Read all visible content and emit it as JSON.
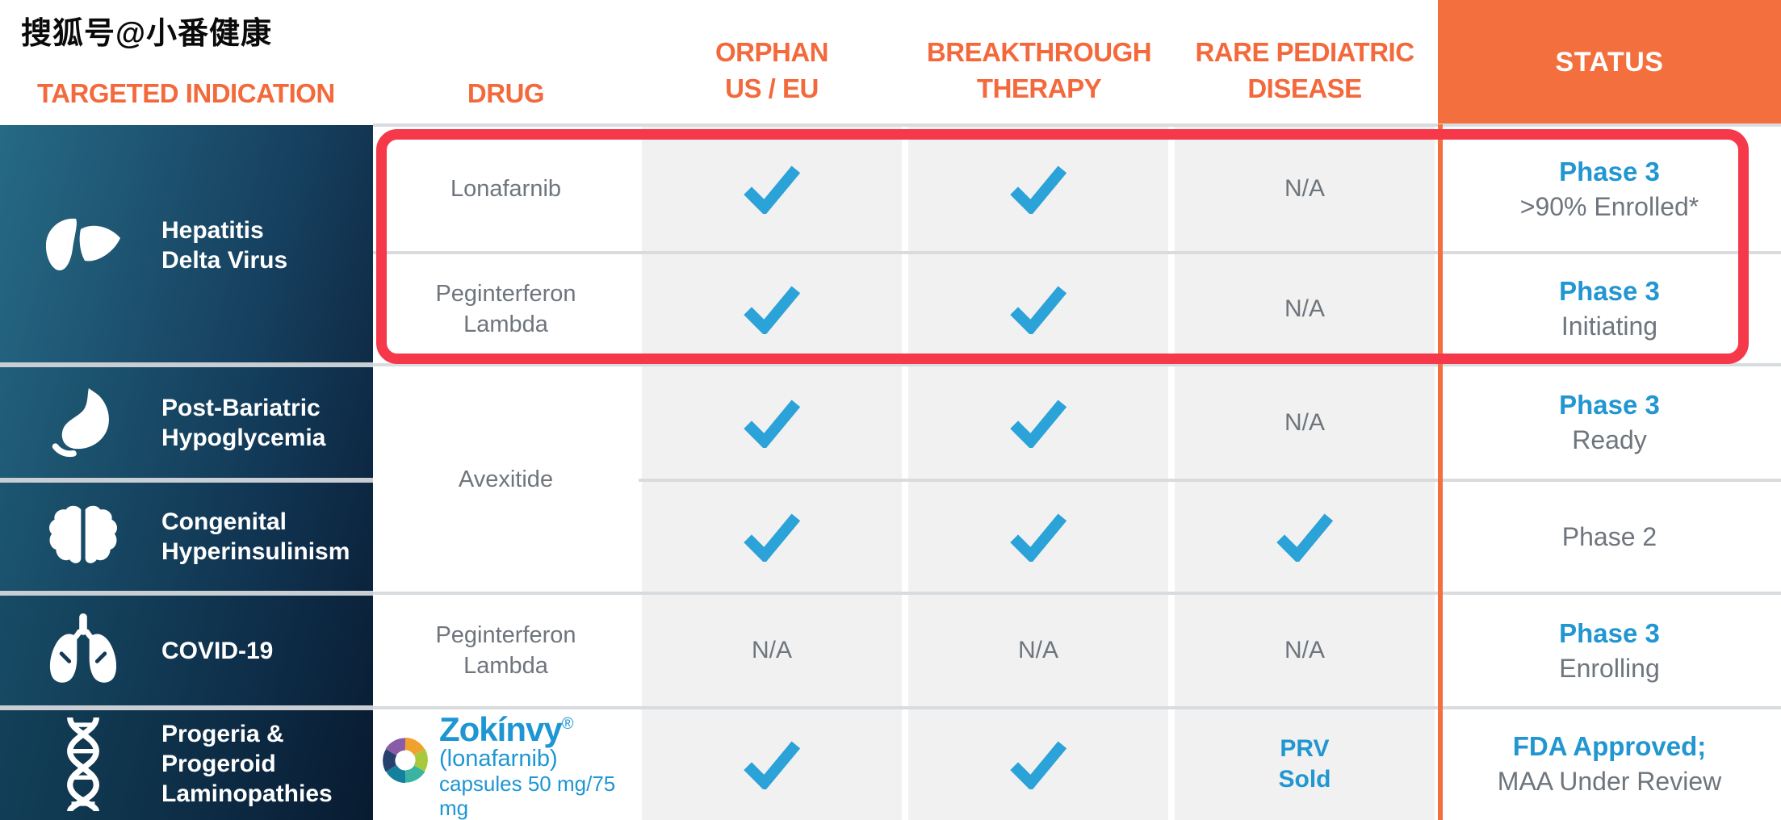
{
  "watermark": "搜狐号@小番健康",
  "header": {
    "targeted_indication": "TARGETED INDICATION",
    "drug": "DRUG",
    "orphan": {
      "line1": "ORPHAN",
      "line2": "US / EU"
    },
    "breakthrough": {
      "line1": "BREAKTHROUGH",
      "line2": "THERAPY"
    },
    "rare_pediatric": {
      "line1": "RARE PEDIATRIC",
      "line2": "DISEASE"
    },
    "status": "STATUS"
  },
  "labels": {
    "na": "N/A",
    "prv_line1": "PRV",
    "prv_line2": "Sold"
  },
  "colors": {
    "orange": "#f3693c",
    "orange_block": "#f36f3e",
    "highlight_red": "#f5394a",
    "blue": "#2196d1",
    "check_blue": "#2ba2d8",
    "gray_text": "#6e757d",
    "dark_navy": "#0f2b46",
    "teal": "#256883",
    "cell_gray": "#f1f1f1"
  },
  "indications": [
    {
      "icon": "liver-icon",
      "line1": "Hepatitis",
      "line2": "Delta Virus"
    },
    {
      "icon": "stomach-icon",
      "line1": "Post-Bariatric",
      "line2": "Hypoglycemia"
    },
    {
      "icon": "brain-icon",
      "line1": "Congenital",
      "line2": "Hyperinsulinism"
    },
    {
      "icon": "lungs-icon",
      "line1": "COVID-19"
    },
    {
      "icon": "dna-icon",
      "line1": "Progeria &",
      "line2": "Progeroid",
      "line3": "Laminopathies"
    }
  ],
  "drugs": {
    "hepatitis_row1": "Lonafarnib",
    "hepatitis_row2_line1": "Peginterferon",
    "hepatitis_row2_line2": "Lambda",
    "avexitide": "Avexitide",
    "covid_line1": "Peginterferon",
    "covid_line2": "Lambda",
    "zokinvy": {
      "brand": "Zokínvy",
      "reg": "®",
      "generic": "(lonafarnib)",
      "capsules_line": "capsules 50 mg/75 mg"
    }
  },
  "designations": {
    "orphan_us_eu": [
      "check",
      "check",
      "check",
      "check",
      "na",
      "check"
    ],
    "breakthrough_therapy": [
      "check",
      "check",
      "check",
      "check",
      "na",
      "check"
    ],
    "rare_pediatric_disease": [
      "na",
      "na",
      "na",
      "check",
      "na",
      "prv"
    ]
  },
  "statuses": [
    {
      "line1": "Phase 3",
      "line2": ">90% Enrolled*"
    },
    {
      "line1": "Phase 3",
      "line2": "Initiating"
    },
    {
      "line1": "Phase 3",
      "line2": "Ready"
    },
    {
      "line1": "Phase 2",
      "line2": ""
    },
    {
      "line1": "Phase 3",
      "line2": "Enrolling"
    },
    {
      "line1": "FDA Approved;",
      "line2": "MAA Under Review"
    }
  ]
}
